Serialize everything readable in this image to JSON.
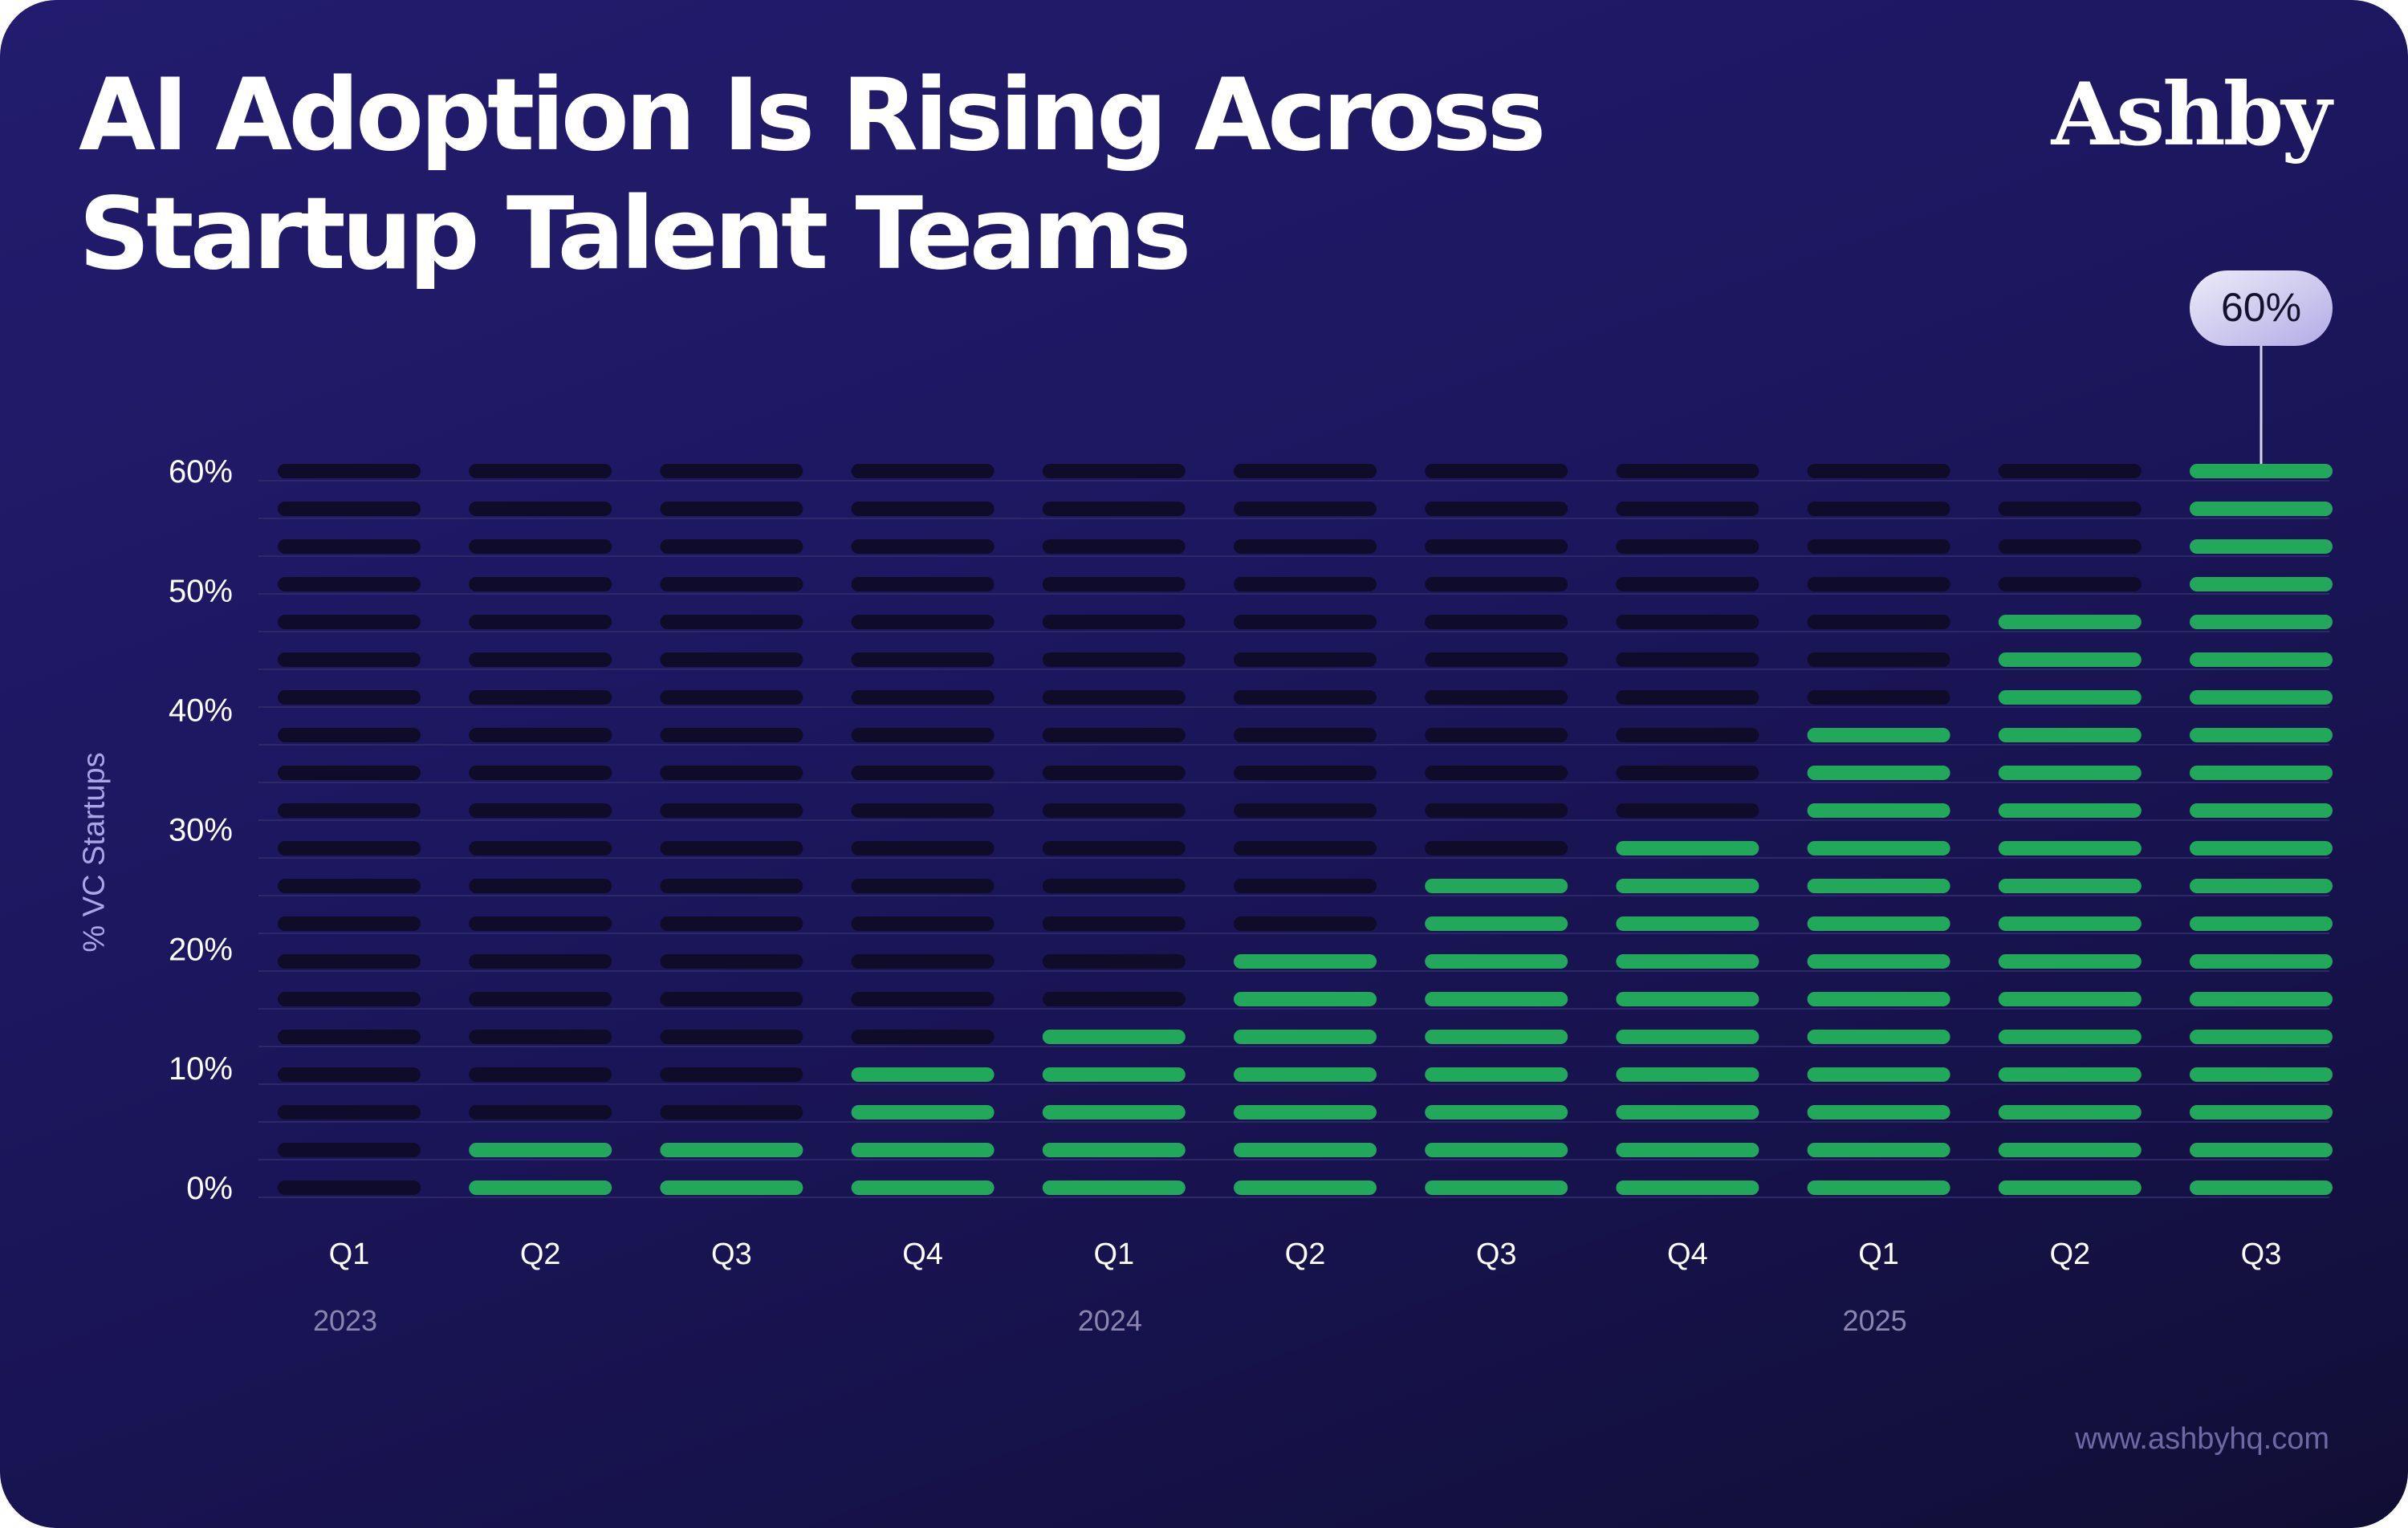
{
  "header": {
    "title_line1": "AI Adoption Is Rising Across",
    "title_line2": "Startup Talent Teams",
    "logo": "Ashby"
  },
  "footer": {
    "url": "www.ashbyhq.com"
  },
  "colors": {
    "filled": "#22a85a",
    "empty": "#0f0c2a",
    "gridline": "#2d2868",
    "tick_label": "#ffffff",
    "year_label": "#8a86b0",
    "axis_title": "#a9a5e6",
    "callout_text": "#14112e"
  },
  "chart_data": {
    "type": "bar",
    "style": "segmented-stacked-dashes",
    "title": "AI Adoption Is Rising Across Startup Talent Teams",
    "xlabel": "",
    "ylabel": "% VC Startups",
    "ylim": [
      0,
      60
    ],
    "y_ticks": [
      "0%",
      "10%",
      "20%",
      "30%",
      "40%",
      "50%",
      "60%"
    ],
    "y_tick_values": [
      0,
      10,
      20,
      30,
      40,
      50,
      60
    ],
    "segments_per_column": 20,
    "categories": [
      "Q1",
      "Q2",
      "Q3",
      "Q4",
      "Q1",
      "Q2",
      "Q3",
      "Q4",
      "Q1",
      "Q2",
      "Q3"
    ],
    "years": [
      {
        "label": "2023",
        "category_index": 0
      },
      {
        "label": "2024",
        "category_index": 4
      },
      {
        "label": "2025",
        "category_index": 8
      }
    ],
    "filled_segments": [
      0,
      2,
      2,
      4,
      5,
      7,
      9,
      10,
      13,
      16,
      20
    ],
    "values": [
      0,
      3,
      3,
      9,
      13,
      19,
      25,
      28,
      38,
      47,
      60
    ],
    "grid": true,
    "annotation": {
      "category_index": 10,
      "text": "60%"
    }
  }
}
